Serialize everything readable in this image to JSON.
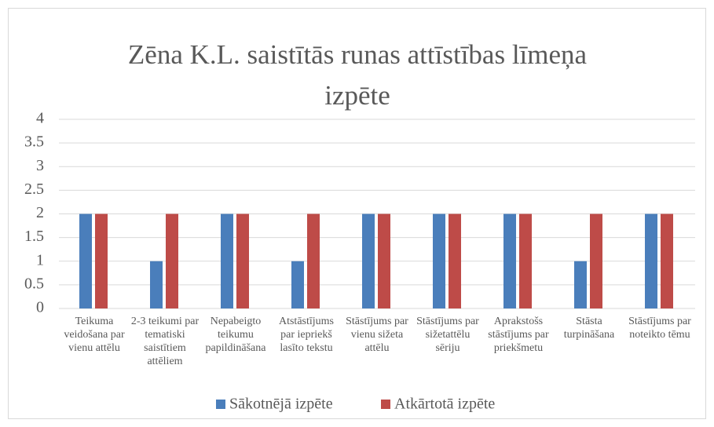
{
  "chart_data": {
    "type": "bar",
    "title": "Zēna K.L. saistītās runas attīstības līmeņa izpēte",
    "categories": [
      "Teikuma veidošana par vienu attēlu",
      "2-3 teikumi par tematiski saistītiem attēliem",
      "Nepabeigto teikumu papildināšana",
      "Atstāstījums par iepriekš lasīto tekstu",
      "Stāstījums par vienu sižeta attēlu",
      "Stāstījums par sižetattēlu sēriju",
      "Aprakstošs stāstījums par priekšmetu",
      "Stāsta turpināšana",
      "Stāstījums par noteikto tēmu"
    ],
    "series": [
      {
        "name": "Sākotnējā izpēte",
        "color": "#4a7ebb",
        "values": [
          2,
          1,
          2,
          1,
          2,
          2,
          2,
          1,
          2
        ]
      },
      {
        "name": "Atkārtotā izpēte",
        "color": "#be4b48",
        "values": [
          2,
          2,
          2,
          2,
          2,
          2,
          2,
          2,
          2
        ]
      }
    ],
    "ylim": [
      0,
      4
    ],
    "yticks": [
      0,
      0.5,
      1,
      1.5,
      2,
      2.5,
      3,
      3.5,
      4
    ],
    "grid": true,
    "legend": "bottom"
  }
}
